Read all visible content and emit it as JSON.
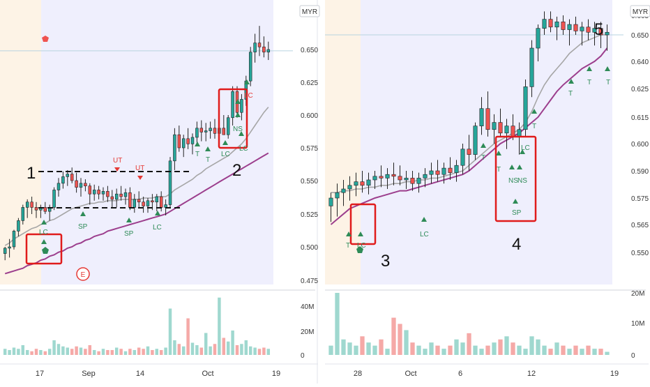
{
  "colors": {
    "up": "#26a69a",
    "down": "#ef5350",
    "up_vol": "#9fd8cf",
    "down_vol": "#f5a9a7",
    "ma_short": "#a6a6a6",
    "ma_long": "#9c3e8d",
    "session_pre": "#fdf3e6",
    "session_main": "#efeffd",
    "annotation_box": "#e01b1b",
    "signal": "#2e8b57",
    "signal_bear": "#e53935",
    "price_line": "#b7d3e0"
  },
  "chart_data": [
    {
      "type": "candlestick",
      "panel": "left",
      "currency": "MYR",
      "ylim": [
        0.47,
        0.675
      ],
      "yticks": [
        "0.650",
        "0.625",
        "0.600",
        "0.575",
        "0.550",
        "0.525",
        "0.500",
        "0.475"
      ],
      "xticks": [
        "17",
        "Sep",
        "14",
        "Oct",
        "19"
      ],
      "volume_ticks": [
        "40M",
        "20M",
        "0"
      ],
      "volume_max": 48,
      "horizontal_line": 0.649,
      "candles": [
        [
          0.495,
          0.5,
          0.49,
          0.499
        ],
        [
          0.499,
          0.506,
          0.492,
          0.5
        ],
        [
          0.5,
          0.513,
          0.498,
          0.512
        ],
        [
          0.512,
          0.522,
          0.508,
          0.52
        ],
        [
          0.52,
          0.532,
          0.517,
          0.53
        ],
        [
          0.53,
          0.536,
          0.522,
          0.534
        ],
        [
          0.534,
          0.538,
          0.525,
          0.53
        ],
        [
          0.53,
          0.534,
          0.522,
          0.528
        ],
        [
          0.528,
          0.532,
          0.522,
          0.53
        ],
        [
          0.53,
          0.534,
          0.525,
          0.527
        ],
        [
          0.527,
          0.532,
          0.52,
          0.53
        ],
        [
          0.53,
          0.545,
          0.528,
          0.543
        ],
        [
          0.543,
          0.552,
          0.538,
          0.548
        ],
        [
          0.548,
          0.557,
          0.544,
          0.553
        ],
        [
          0.553,
          0.558,
          0.546,
          0.555
        ],
        [
          0.555,
          0.56,
          0.548,
          0.55
        ],
        [
          0.55,
          0.556,
          0.541,
          0.545
        ],
        [
          0.545,
          0.552,
          0.538,
          0.548
        ],
        [
          0.548,
          0.551,
          0.542,
          0.546
        ],
        [
          0.546,
          0.548,
          0.532,
          0.54
        ],
        [
          0.54,
          0.547,
          0.535,
          0.543
        ],
        [
          0.543,
          0.546,
          0.536,
          0.54
        ],
        [
          0.54,
          0.545,
          0.535,
          0.542
        ],
        [
          0.542,
          0.546,
          0.534,
          0.538
        ],
        [
          0.538,
          0.543,
          0.53,
          0.536
        ],
        [
          0.536,
          0.544,
          0.53,
          0.54
        ],
        [
          0.54,
          0.546,
          0.535,
          0.538
        ],
        [
          0.538,
          0.544,
          0.532,
          0.541
        ],
        [
          0.541,
          0.545,
          0.528,
          0.53
        ],
        [
          0.53,
          0.54,
          0.526,
          0.536
        ],
        [
          0.536,
          0.542,
          0.53,
          0.534
        ],
        [
          0.534,
          0.538,
          0.526,
          0.531
        ],
        [
          0.531,
          0.537,
          0.526,
          0.535
        ],
        [
          0.535,
          0.54,
          0.528,
          0.534
        ],
        [
          0.534,
          0.54,
          0.527,
          0.538
        ],
        [
          0.538,
          0.542,
          0.527,
          0.53
        ],
        [
          0.53,
          0.536,
          0.524,
          0.532
        ],
        [
          0.532,
          0.568,
          0.53,
          0.565
        ],
        [
          0.565,
          0.59,
          0.558,
          0.585
        ],
        [
          0.585,
          0.592,
          0.572,
          0.575
        ],
        [
          0.575,
          0.585,
          0.568,
          0.582
        ],
        [
          0.582,
          0.59,
          0.574,
          0.578
        ],
        [
          0.578,
          0.586,
          0.57,
          0.583
        ],
        [
          0.583,
          0.595,
          0.578,
          0.59
        ],
        [
          0.59,
          0.596,
          0.58,
          0.587
        ],
        [
          0.587,
          0.594,
          0.58,
          0.588
        ],
        [
          0.588,
          0.595,
          0.582,
          0.59
        ],
        [
          0.59,
          0.597,
          0.582,
          0.586
        ],
        [
          0.586,
          0.594,
          0.58,
          0.59
        ],
        [
          0.59,
          0.6,
          0.585,
          0.585
        ],
        [
          0.585,
          0.6,
          0.582,
          0.598
        ],
        [
          0.598,
          0.622,
          0.592,
          0.618
        ],
        [
          0.618,
          0.622,
          0.598,
          0.602
        ],
        [
          0.602,
          0.616,
          0.596,
          0.612
        ],
        [
          0.612,
          0.63,
          0.607,
          0.626
        ],
        [
          0.626,
          0.652,
          0.622,
          0.648
        ],
        [
          0.648,
          0.662,
          0.64,
          0.655
        ],
        [
          0.655,
          0.668,
          0.645,
          0.652
        ],
        [
          0.652,
          0.66,
          0.644,
          0.648
        ],
        [
          0.648,
          0.656,
          0.642,
          0.65
        ]
      ],
      "volume": [
        5,
        4,
        6,
        5,
        8,
        4,
        3,
        5,
        4,
        3,
        5,
        12,
        9,
        7,
        6,
        5,
        7,
        6,
        5,
        8,
        4,
        3,
        5,
        4,
        4,
        6,
        5,
        3,
        5,
        4,
        6,
        5,
        7,
        4,
        5,
        4,
        6,
        38,
        12,
        9,
        7,
        30,
        10,
        8,
        6,
        18,
        7,
        9,
        47,
        14,
        11,
        20,
        8,
        9,
        12,
        7,
        6,
        5,
        6,
        5
      ],
      "ma_short": [
        0.501,
        0.503,
        0.506,
        0.508,
        0.51,
        0.512,
        0.514,
        0.515,
        0.517,
        0.518,
        0.52,
        0.521,
        0.523,
        0.525,
        0.527,
        0.529,
        0.53,
        0.531,
        0.532,
        0.533,
        0.533,
        0.534,
        0.534,
        0.535,
        0.535,
        0.535,
        0.536,
        0.536,
        0.536,
        0.536,
        0.536,
        0.537,
        0.537,
        0.537,
        0.538,
        0.538,
        0.538,
        0.54,
        0.543,
        0.545,
        0.547,
        0.549,
        0.551,
        0.554,
        0.556,
        0.559,
        0.561,
        0.563,
        0.565,
        0.567,
        0.569,
        0.572,
        0.575,
        0.578,
        0.582,
        0.587,
        0.592,
        0.597,
        0.602,
        0.606
      ],
      "ma_long": [
        0.48,
        0.481,
        0.482,
        0.483,
        0.484,
        0.486,
        0.487,
        0.488,
        0.49,
        0.491,
        0.493,
        0.494,
        0.496,
        0.497,
        0.499,
        0.5,
        0.502,
        0.503,
        0.505,
        0.506,
        0.508,
        0.509,
        0.51,
        0.512,
        0.513,
        0.514,
        0.515,
        0.516,
        0.517,
        0.518,
        0.519,
        0.52,
        0.521,
        0.522,
        0.523,
        0.524,
        0.525,
        0.527,
        0.529,
        0.531,
        0.533,
        0.535,
        0.537,
        0.539,
        0.541,
        0.543,
        0.545,
        0.547,
        0.549,
        0.551,
        0.553,
        0.555,
        0.557,
        0.559,
        0.561,
        0.563,
        0.565,
        0.567,
        0.569,
        0.571
      ]
    },
    {
      "type": "candlestick",
      "panel": "right",
      "currency": "MYR",
      "ylim": [
        0.548,
        0.669
      ],
      "yticks": [
        "0.665",
        "0.650",
        "0.640",
        "0.625",
        "0.615",
        "0.600",
        "0.590",
        "0.575",
        "0.565",
        "0.550"
      ],
      "xticks": [
        "28",
        "Oct",
        "6",
        "12",
        "19"
      ],
      "volume_ticks": [
        "20M",
        "10M",
        "0"
      ],
      "volume_max": 22,
      "horizontal_line": 0.65,
      "candles": [
        [
          0.572,
          0.578,
          0.566,
          0.575
        ],
        [
          0.575,
          0.583,
          0.568,
          0.578
        ],
        [
          0.578,
          0.585,
          0.572,
          0.58
        ],
        [
          0.58,
          0.587,
          0.574,
          0.582
        ],
        [
          0.582,
          0.589,
          0.576,
          0.584
        ],
        [
          0.584,
          0.59,
          0.578,
          0.582
        ],
        [
          0.582,
          0.589,
          0.577,
          0.585
        ],
        [
          0.585,
          0.59,
          0.58,
          0.587
        ],
        [
          0.587,
          0.592,
          0.581,
          0.586
        ],
        [
          0.586,
          0.591,
          0.58,
          0.588
        ],
        [
          0.588,
          0.593,
          0.582,
          0.587
        ],
        [
          0.587,
          0.592,
          0.582,
          0.585
        ],
        [
          0.585,
          0.59,
          0.58,
          0.586
        ],
        [
          0.586,
          0.59,
          0.579,
          0.583
        ],
        [
          0.583,
          0.589,
          0.578,
          0.586
        ],
        [
          0.586,
          0.591,
          0.581,
          0.588
        ],
        [
          0.588,
          0.593,
          0.583,
          0.59
        ],
        [
          0.59,
          0.594,
          0.584,
          0.588
        ],
        [
          0.588,
          0.593,
          0.583,
          0.591
        ],
        [
          0.591,
          0.595,
          0.585,
          0.589
        ],
        [
          0.589,
          0.594,
          0.584,
          0.592
        ],
        [
          0.592,
          0.6,
          0.588,
          0.598
        ],
        [
          0.598,
          0.605,
          0.59,
          0.596
        ],
        [
          0.596,
          0.612,
          0.594,
          0.61
        ],
        [
          0.61,
          0.622,
          0.605,
          0.618
        ],
        [
          0.618,
          0.624,
          0.604,
          0.608
        ],
        [
          0.608,
          0.616,
          0.6,
          0.612
        ],
        [
          0.612,
          0.618,
          0.604,
          0.606
        ],
        [
          0.606,
          0.614,
          0.598,
          0.61
        ],
        [
          0.61,
          0.616,
          0.602,
          0.604
        ],
        [
          0.604,
          0.612,
          0.596,
          0.608
        ],
        [
          0.608,
          0.63,
          0.604,
          0.626
        ],
        [
          0.626,
          0.648,
          0.622,
          0.645
        ],
        [
          0.645,
          0.658,
          0.64,
          0.655
        ],
        [
          0.655,
          0.668,
          0.65,
          0.662
        ],
        [
          0.662,
          0.668,
          0.652,
          0.656
        ],
        [
          0.656,
          0.664,
          0.648,
          0.66
        ],
        [
          0.66,
          0.665,
          0.65,
          0.654
        ],
        [
          0.654,
          0.662,
          0.646,
          0.658
        ],
        [
          0.658,
          0.664,
          0.65,
          0.653
        ],
        [
          0.653,
          0.66,
          0.646,
          0.656
        ],
        [
          0.656,
          0.662,
          0.648,
          0.652
        ],
        [
          0.652,
          0.66,
          0.646,
          0.655
        ],
        [
          0.655,
          0.66,
          0.645,
          0.65
        ],
        [
          0.65,
          0.658,
          0.644,
          0.652
        ]
      ],
      "volume": [
        3,
        20,
        5,
        4,
        3,
        6,
        4,
        3,
        5,
        2,
        12,
        10,
        8,
        4,
        3,
        2,
        4,
        3,
        2,
        3,
        5,
        4,
        7,
        3,
        2,
        3,
        4,
        5,
        6,
        4,
        3,
        2,
        6,
        5,
        3,
        2,
        4,
        3,
        2,
        3,
        2,
        3,
        2,
        2,
        1
      ],
      "ma_short": [
        0.578,
        0.578,
        0.579,
        0.579,
        0.58,
        0.58,
        0.581,
        0.581,
        0.582,
        0.582,
        0.583,
        0.583,
        0.584,
        0.584,
        0.585,
        0.585,
        0.586,
        0.586,
        0.587,
        0.588,
        0.589,
        0.59,
        0.592,
        0.594,
        0.596,
        0.598,
        0.6,
        0.602,
        0.604,
        0.606,
        0.608,
        0.612,
        0.617,
        0.622,
        0.627,
        0.632,
        0.636,
        0.64,
        0.643,
        0.645,
        0.647,
        0.648,
        0.649,
        0.65,
        0.65
      ],
      "ma_long": [
        0.565,
        0.567,
        0.569,
        0.571,
        0.572,
        0.573,
        0.574,
        0.575,
        0.576,
        0.577,
        0.578,
        0.579,
        0.579,
        0.58,
        0.581,
        0.582,
        0.583,
        0.584,
        0.585,
        0.586,
        0.587,
        0.588,
        0.59,
        0.592,
        0.594,
        0.596,
        0.598,
        0.6,
        0.602,
        0.604,
        0.606,
        0.609,
        0.612,
        0.615,
        0.618,
        0.621,
        0.624,
        0.627,
        0.63,
        0.633,
        0.636,
        0.638,
        0.64,
        0.642,
        0.645
      ]
    }
  ],
  "annotations": {
    "left": {
      "label_1": "1",
      "label_2": "2",
      "ut_1": "UT",
      "ut_2": "UT",
      "lc_1": "LC",
      "sp_1": "SP",
      "sp_2": "SP",
      "lc_2": "LC",
      "t_1": "T",
      "t_2": "T",
      "lc_3": "LC",
      "ns_1": "NS",
      "lc_4": "LC",
      "lc_5": "LC",
      "event_badge": "E"
    },
    "right": {
      "label_3": "3",
      "label_4": "4",
      "label_5": "5",
      "lc_1": "LC",
      "t_1": "T",
      "lc_2": "LC",
      "t_2": "T",
      "ns_1": "NS",
      "ns_2": "NS",
      "lc_3": "LC",
      "sp_1": "SP",
      "t_3": "T",
      "t_4": "T",
      "t_5": "T",
      "t_6": "T",
      "t_7": "T"
    }
  }
}
